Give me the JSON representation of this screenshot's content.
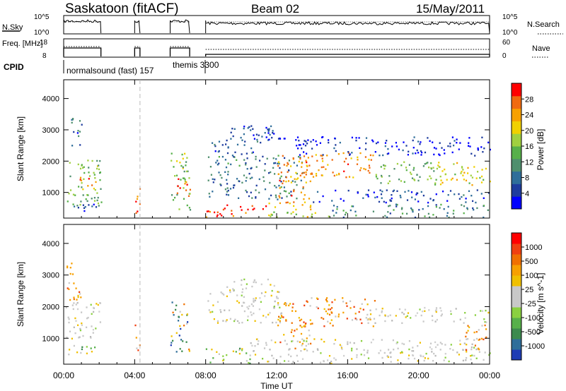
{
  "header": {
    "station": "Saskatoon (fitACF)",
    "beam": "Beam 02",
    "date": "15/May/2011"
  },
  "chart_data": [
    {
      "type": "line",
      "panel": "noise",
      "left_label": "N.Sky",
      "right_label": "N.Search",
      "left_ticks": [
        "10^5",
        "10^0"
      ],
      "right_ticks": [
        "10^5",
        "10^0"
      ],
      "segments_hours": [
        [
          0.0,
          2.1
        ],
        [
          4.0,
          4.3
        ],
        [
          6.0,
          7.1
        ],
        [
          8.0,
          24.0
        ]
      ]
    },
    {
      "type": "line",
      "panel": "frequency",
      "left_label": "Freq. [MHz]",
      "right_label": "Nave",
      "left_ticks": [
        "18",
        "8"
      ],
      "right_ticks": [
        "60",
        "0"
      ],
      "left_ylim": [
        8,
        18
      ],
      "right_ylim": [
        0,
        60
      ],
      "segments_hours": [
        [
          0.0,
          2.1
        ],
        [
          4.0,
          4.3
        ],
        [
          6.0,
          7.1
        ],
        [
          8.0,
          24.0
        ]
      ]
    },
    {
      "type": "table",
      "panel": "cpid",
      "label": "CPID",
      "entries": [
        {
          "start_hour": 0.0,
          "text": "normalsound (fast) 157"
        },
        {
          "start_hour": 8.0,
          "text": "themis 3300"
        }
      ]
    },
    {
      "type": "heatmap",
      "panel": "power",
      "ylabel": "Slant Range [km]",
      "yticks": [
        1000,
        2000,
        3000,
        4000
      ],
      "ylim": [
        180,
        4600
      ],
      "colorbar_label": "Power [dB]",
      "colorbar_ticks": [
        "28",
        "24",
        "20",
        "16",
        "12",
        "8",
        "4"
      ],
      "colorbar_colors": [
        "#0000ff",
        "#1e3c9e",
        "#2f6e9a",
        "#4f8f6e",
        "#57b04a",
        "#a0d040",
        "#f0d000",
        "#f7a000",
        "#f06a10",
        "#ff0000"
      ],
      "clusters": [
        {
          "t0": 0.1,
          "t1": 2.1,
          "r0": 600,
          "r1": 2100,
          "level": 0.45
        },
        {
          "t0": 0.9,
          "t1": 2.1,
          "r0": 1100,
          "r1": 1500,
          "level": 0.85
        },
        {
          "t0": 0.3,
          "t1": 1.0,
          "r0": 2500,
          "r1": 3500,
          "level": 0.2
        },
        {
          "t0": 0.1,
          "t1": 1.9,
          "r0": 380,
          "r1": 700,
          "level": 0.15
        },
        {
          "t0": 4.0,
          "t1": 4.3,
          "r0": 300,
          "r1": 1600,
          "level": 0.9
        },
        {
          "t0": 6.0,
          "t1": 7.1,
          "r0": 400,
          "r1": 2300,
          "level": 0.5
        },
        {
          "t0": 6.3,
          "t1": 7.1,
          "r0": 800,
          "r1": 1500,
          "level": 0.92
        },
        {
          "t0": 8.0,
          "t1": 11.5,
          "r0": 180,
          "r1": 620,
          "level": 0.95
        },
        {
          "t0": 11.5,
          "t1": 15.0,
          "r0": 180,
          "r1": 700,
          "level": 0.6
        },
        {
          "t0": 15.0,
          "t1": 24.0,
          "r0": 180,
          "r1": 650,
          "level": 0.3
        },
        {
          "t0": 8.1,
          "t1": 13.5,
          "r0": 800,
          "r1": 2200,
          "level": 0.25
        },
        {
          "t0": 8.3,
          "t1": 11.0,
          "r0": 2200,
          "r1": 2700,
          "level": 0.15
        },
        {
          "t0": 10.5,
          "t1": 12.5,
          "r0": 2600,
          "r1": 3000,
          "level": 0.1
        },
        {
          "t0": 9.0,
          "t1": 12.0,
          "r0": 2700,
          "r1": 3200,
          "level": 0.08
        },
        {
          "t0": 12.0,
          "t1": 14.0,
          "r0": 700,
          "r1": 2200,
          "level": 0.8
        },
        {
          "t0": 13.3,
          "t1": 17.5,
          "r0": 1500,
          "r1": 2300,
          "level": 0.8
        },
        {
          "t0": 17.5,
          "t1": 21.0,
          "r0": 1300,
          "r1": 2000,
          "level": 0.45
        },
        {
          "t0": 20.5,
          "t1": 24.0,
          "r0": 1200,
          "r1": 2000,
          "level": 0.65
        },
        {
          "t0": 14.0,
          "t1": 24.0,
          "r0": 700,
          "r1": 1100,
          "level": 0.12
        },
        {
          "t0": 13.0,
          "t1": 24.0,
          "r0": 2200,
          "r1": 2800,
          "level": 0.05
        }
      ]
    },
    {
      "type": "heatmap",
      "panel": "velocity",
      "ylabel": "Slant Range [km]",
      "yticks": [
        1000,
        2000,
        3000,
        4000
      ],
      "ylim": [
        180,
        4600
      ],
      "colorbar_label": "Velocity [m s^-1]",
      "colorbar_ticks": [
        "1000",
        "500",
        "100",
        "25",
        "-25",
        "-100",
        "-500",
        "-1000"
      ],
      "colorbar_colors": [
        "#1e3cb4",
        "#2f6e9a",
        "#3c8a4e",
        "#57b04a",
        "#8ad040",
        "#c8c8c8",
        "#c8c8c8",
        "#f0c000",
        "#f7a000",
        "#f07000",
        "#f04010",
        "#ff0000"
      ],
      "xlabel": "Time UT",
      "xticks": [
        "00:00",
        "04:00",
        "08:00",
        "12:00",
        "16:00",
        "20:00",
        "00:00"
      ],
      "xlim_hours": [
        0,
        24
      ],
      "clusters": [
        {
          "t0": 0.1,
          "t1": 2.1,
          "r0": 900,
          "r1": 2200,
          "level": "grey"
        },
        {
          "t0": 0.1,
          "t1": 1.0,
          "r0": 2200,
          "r1": 3400,
          "level": "orange"
        },
        {
          "t0": 0.2,
          "t1": 1.9,
          "r0": 400,
          "r1": 800,
          "level": "green"
        },
        {
          "t0": 4.0,
          "t1": 4.3,
          "r0": 600,
          "r1": 1500,
          "level": "orange"
        },
        {
          "t0": 6.0,
          "t1": 7.1,
          "r0": 600,
          "r1": 2200,
          "level": "blue"
        },
        {
          "t0": 8.0,
          "t1": 10.5,
          "r0": 180,
          "r1": 700,
          "level": "green"
        },
        {
          "t0": 8.0,
          "t1": 12.5,
          "r0": 1500,
          "r1": 2500,
          "level": "grey"
        },
        {
          "t0": 9.0,
          "t1": 12.0,
          "r0": 2500,
          "r1": 2900,
          "level": "grey"
        },
        {
          "t0": 12.0,
          "t1": 14.0,
          "r0": 700,
          "r1": 2200,
          "level": "orange"
        },
        {
          "t0": 13.5,
          "t1": 17.5,
          "r0": 1400,
          "r1": 2300,
          "level": "orange"
        },
        {
          "t0": 10.5,
          "t1": 24.0,
          "r0": 180,
          "r1": 1000,
          "level": "grey"
        },
        {
          "t0": 17.0,
          "t1": 24.0,
          "r0": 1500,
          "r1": 2000,
          "level": "grey"
        },
        {
          "t0": 22.5,
          "t1": 24.0,
          "r0": 600,
          "r1": 1500,
          "level": "orange"
        }
      ]
    }
  ]
}
